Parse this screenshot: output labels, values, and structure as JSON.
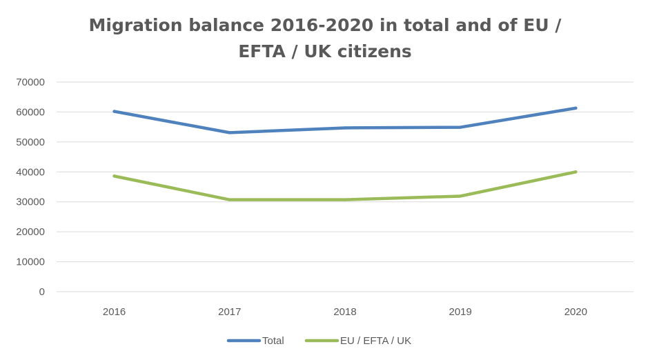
{
  "chart_data": {
    "type": "line",
    "title_lines": [
      "Migration balance 2016-2020 in total and of EU /",
      "EFTA / UK  citizens"
    ],
    "categories": [
      "2016",
      "2017",
      "2018",
      "2019",
      "2020"
    ],
    "series": [
      {
        "name": "Total",
        "color": "#4F81BD",
        "values": [
          60200,
          53100,
          54700,
          54900,
          61300
        ]
      },
      {
        "name": "EU / EFTA / UK",
        "color": "#9BBB59",
        "values": [
          38600,
          30700,
          30700,
          31900,
          40000
        ]
      }
    ],
    "ylim": [
      0,
      70000
    ],
    "yticks": [
      "0",
      "10000",
      "20000",
      "30000",
      "40000",
      "50000",
      "60000",
      "70000"
    ],
    "grid": true,
    "legend_position": "bottom"
  }
}
